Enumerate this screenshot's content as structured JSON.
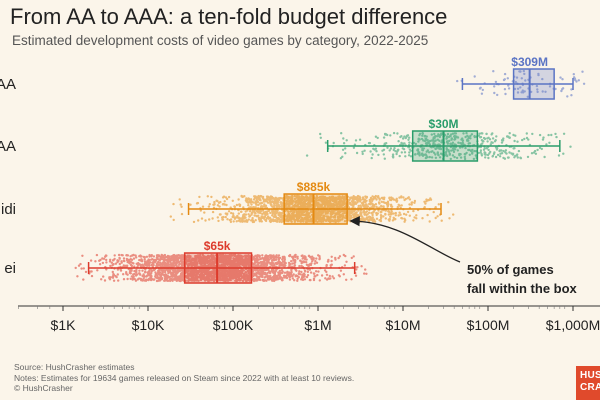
{
  "title": "From AA to AAA: a ten-fold budget difference",
  "subtitle": "Estimated development costs of video games by category, 2022-2025",
  "footer": {
    "source": "Source: HushCrasher estimates",
    "notes": "Notes: Estimates for 19634 games released on Steam since 2022 with at least 10 reviews.",
    "copyright": "© HushCrasher"
  },
  "logo": {
    "line1": "HUSH",
    "line2": "CRASH"
  },
  "annotation": {
    "line1": "50% of games",
    "line2": "fall within the box"
  },
  "colors": {
    "background": "#fbf5ea",
    "AAA": "#5b74c4",
    "AA": "#2a9d6b",
    "Indie": "#e48a12",
    "Hobbyist": "#dd3b2c"
  },
  "chart_data": {
    "type": "boxplot",
    "x_scale": "log",
    "xlim": [
      1000,
      1000000000
    ],
    "xticks": [
      1000,
      10000,
      100000,
      1000000,
      10000000,
      100000000,
      1000000000
    ],
    "xtick_labels": [
      "$1K",
      "$10K",
      "$100K",
      "$1M",
      "$10M",
      "$100M",
      "$1,000M"
    ],
    "categories": [
      {
        "label": "AAA",
        "visible_label": "AA",
        "color_key": "AAA",
        "whisker_low": 50000000,
        "q1": 200000000,
        "median": 309000000,
        "q3": 600000000,
        "whisker_high": 1000000000,
        "median_label": "$309M",
        "approx_points": 80
      },
      {
        "label": "AA",
        "visible_label": "AA",
        "color_key": "AA",
        "whisker_low": 1300000,
        "q1": 13000000,
        "median": 30000000,
        "q3": 75000000,
        "whisker_high": 700000000,
        "median_label": "$30M",
        "approx_points": 500
      },
      {
        "label": "Indie",
        "visible_label": "idi",
        "color_key": "Indie",
        "whisker_low": 30000,
        "q1": 400000,
        "median": 885000,
        "q3": 2200000,
        "whisker_high": 28000000,
        "median_label": "$885k",
        "approx_points": 1800
      },
      {
        "label": "Hobbyist",
        "visible_label": "ei",
        "color_key": "Hobbyist",
        "whisker_low": 2000,
        "q1": 27000,
        "median": 65000,
        "q3": 165000,
        "whisker_high": 2700000,
        "median_label": "$65k",
        "approx_points": 2600
      }
    ]
  }
}
